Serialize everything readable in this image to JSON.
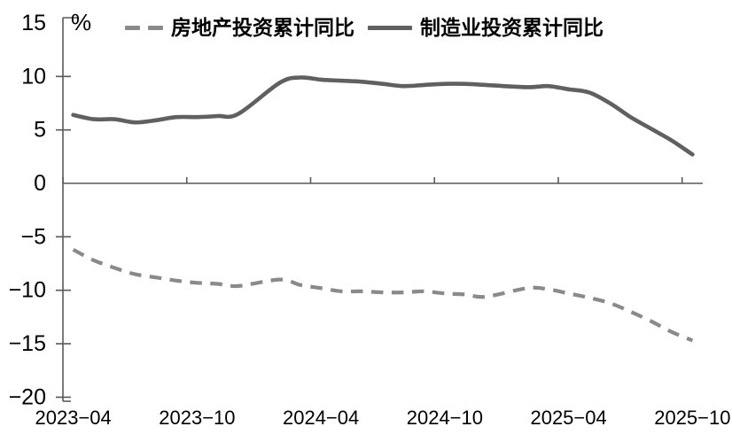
{
  "chart_data": {
    "type": "line",
    "title": "",
    "unit_label": "%",
    "xlabel": "",
    "ylabel": "",
    "ylim": [
      -20,
      15
    ],
    "grid": false,
    "legend_position": "top",
    "axis_color": "#595959",
    "x": [
      "2023-04",
      "2023-05",
      "2023-06",
      "2023-07",
      "2023-08",
      "2023-09",
      "2023-10",
      "2023-11",
      "2023-12",
      "2024-02",
      "2024-03",
      "2024-04",
      "2024-05",
      "2024-06",
      "2024-07",
      "2024-08",
      "2024-09",
      "2024-10",
      "2024-11",
      "2024-12",
      "2025-02",
      "2025-03",
      "2025-04",
      "2025-05",
      "2025-06",
      "2025-07",
      "2025-08",
      "2025-09",
      "2025-10"
    ],
    "series": [
      {
        "name": "房地产投资累计同比",
        "style": "dashed",
        "color": "#8a8a8a",
        "values": [
          -6.2,
          -7.2,
          -7.9,
          -8.5,
          -8.8,
          -9.1,
          -9.3,
          -9.4,
          -9.6,
          -9.0,
          -9.5,
          -9.8,
          -10.1,
          -10.1,
          -10.2,
          -10.2,
          -10.1,
          -10.3,
          -10.4,
          -10.6,
          -9.8,
          -9.9,
          -10.3,
          -10.7,
          -11.2,
          -12.0,
          -12.9,
          -13.9,
          -14.7
        ]
      },
      {
        "name": "制造业投资累计同比",
        "style": "solid",
        "color": "#606060",
        "values": [
          6.4,
          6.0,
          6.0,
          5.7,
          5.9,
          6.2,
          6.2,
          6.3,
          6.5,
          9.4,
          9.9,
          9.7,
          9.6,
          9.5,
          9.3,
          9.1,
          9.2,
          9.3,
          9.3,
          9.2,
          9.0,
          9.1,
          8.8,
          8.5,
          7.5,
          6.2,
          5.1,
          4.0,
          2.7
        ]
      }
    ],
    "xticks": [
      "2023-04",
      "2023-10",
      "2024-04",
      "2024-10",
      "2025-04",
      "2025-10"
    ],
    "xtick_labels": [
      "2023−04",
      "2023−10",
      "2024−04",
      "2024−10",
      "2025−04",
      "2025−10"
    ],
    "ytick_values": [
      15,
      10,
      5,
      0,
      -5,
      -10,
      -15,
      -20
    ],
    "ytick_labels": [
      "15",
      "10",
      "5",
      "0",
      "−5",
      "−10",
      "−15",
      "−20"
    ]
  }
}
